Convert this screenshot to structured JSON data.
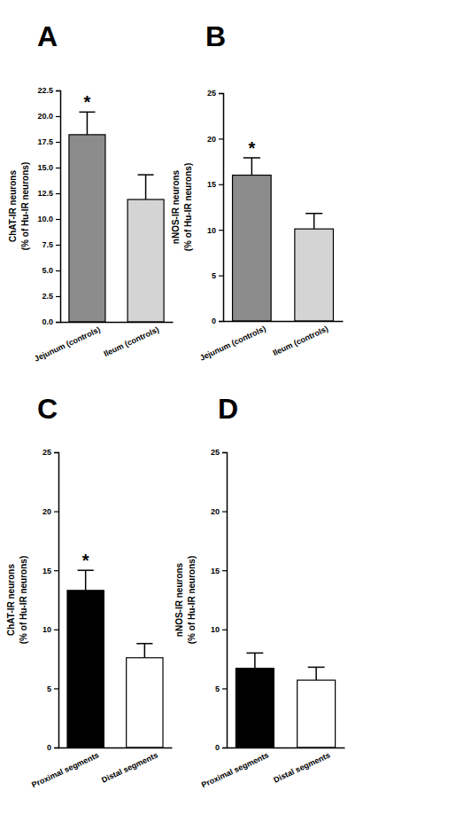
{
  "chart_data": [
    {
      "type": "bar",
      "title": "A",
      "ylabel": [
        "ChAT-IR neurons",
        "(% of Hu-IR neurons)"
      ],
      "categories": [
        "Jejunum (controls)",
        "Ileum (controls)"
      ],
      "values": [
        18.2,
        11.9
      ],
      "errors": [
        2.2,
        2.4
      ],
      "colors": [
        "#8c8c8c",
        "#d4d4d4"
      ],
      "ylim": [
        0,
        22.5
      ],
      "yticks": [
        {
          "value": 0,
          "label": "0.0"
        },
        {
          "value": 2.5,
          "label": "2.5"
        },
        {
          "value": 5,
          "label": "5.0"
        },
        {
          "value": 7.5,
          "label": "7.5"
        },
        {
          "value": 10,
          "label": "10.0"
        },
        {
          "value": 12.5,
          "label": "12.5"
        },
        {
          "value": 15,
          "label": "15.0"
        },
        {
          "value": 17.5,
          "label": "17.5"
        },
        {
          "value": 20,
          "label": "20.0"
        },
        {
          "value": 22.5,
          "label": "22.5"
        }
      ],
      "annotations": [
        {
          "text": "*",
          "category": "Jejunum (controls)"
        }
      ]
    },
    {
      "type": "bar",
      "title": "B",
      "ylabel": [
        "nNOS-IR neurons",
        "(% of Hu-IR neurons)"
      ],
      "categories": [
        "Jejunum (controls)",
        "Ileum (controls)"
      ],
      "values": [
        16.0,
        10.1
      ],
      "errors": [
        1.9,
        1.7
      ],
      "colors": [
        "#8c8c8c",
        "#d4d4d4"
      ],
      "ylim": [
        0,
        25
      ],
      "yticks": [
        0,
        5,
        10,
        15,
        20,
        25
      ],
      "annotations": [
        {
          "text": "*",
          "category": "Jejunum (controls)"
        }
      ]
    },
    {
      "type": "bar",
      "title": "C",
      "ylabel": [
        "ChAT-IR neurons",
        "(% of Hu-IR neurons)"
      ],
      "categories": [
        "Proximal segments",
        "Distal segments"
      ],
      "values": [
        13.3,
        7.6
      ],
      "errors": [
        1.7,
        1.2
      ],
      "colors": [
        "#000000",
        "#ffffff"
      ],
      "ylim": [
        0,
        25
      ],
      "yticks": [
        0,
        5,
        10,
        15,
        20,
        25
      ],
      "annotations": [
        {
          "text": "*",
          "category": "Proximal segments"
        }
      ]
    },
    {
      "type": "bar",
      "title": "D",
      "ylabel": [
        "nNOS-IR neurons",
        "(% of Hu-IR neurons)"
      ],
      "categories": [
        "Proximal segments",
        "Distal segments"
      ],
      "values": [
        6.7,
        5.7
      ],
      "errors": [
        1.3,
        1.1
      ],
      "colors": [
        "#000000",
        "#ffffff"
      ],
      "ylim": [
        0,
        25
      ],
      "yticks": [
        0,
        5,
        10,
        15,
        20,
        25
      ]
    }
  ]
}
